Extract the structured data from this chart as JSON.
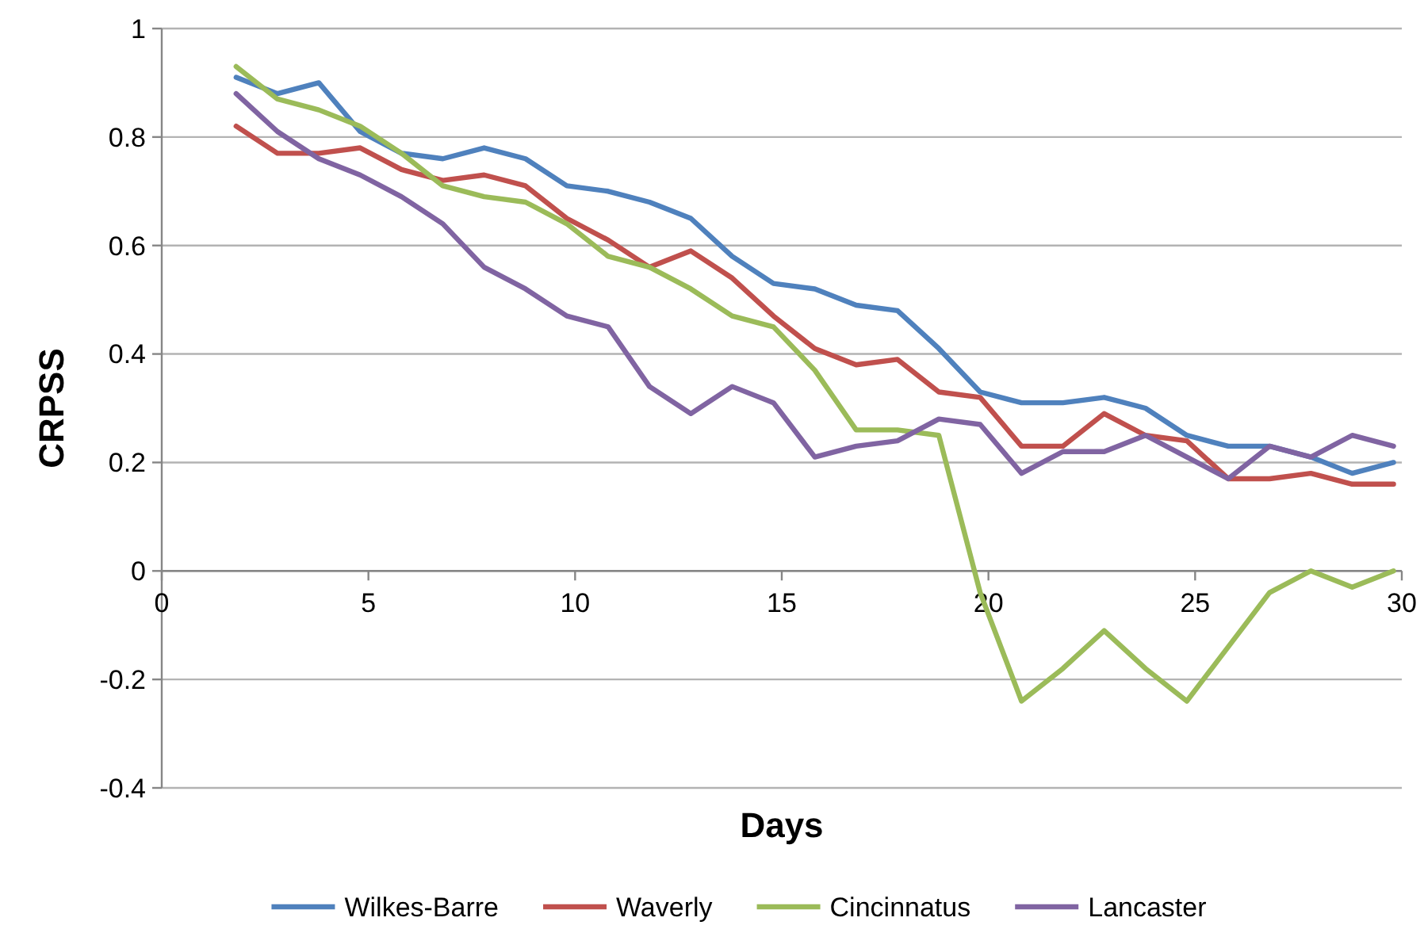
{
  "chart_data": {
    "type": "line",
    "xlabel": "Days",
    "ylabel": "CRPSS",
    "x": [
      1.8,
      2.8,
      3.8,
      4.8,
      5.8,
      6.8,
      7.8,
      8.8,
      9.8,
      10.8,
      11.8,
      12.8,
      13.8,
      14.8,
      15.8,
      16.8,
      17.8,
      18.8,
      19.8,
      20.8,
      21.8,
      22.8,
      23.8,
      24.8,
      25.8,
      26.8,
      27.8,
      28.8,
      29.8
    ],
    "series": [
      {
        "name": "Wilkes-Barre",
        "color": "#4f81bd",
        "values": [
          0.91,
          0.88,
          0.9,
          0.81,
          0.77,
          0.76,
          0.78,
          0.76,
          0.71,
          0.7,
          0.68,
          0.65,
          0.58,
          0.53,
          0.52,
          0.49,
          0.48,
          0.41,
          0.33,
          0.31,
          0.31,
          0.32,
          0.3,
          0.25,
          0.23,
          0.23,
          0.21,
          0.18,
          0.2
        ]
      },
      {
        "name": "Waverly",
        "color": "#c0504d",
        "values": [
          0.82,
          0.77,
          0.77,
          0.78,
          0.74,
          0.72,
          0.73,
          0.71,
          0.65,
          0.61,
          0.56,
          0.59,
          0.54,
          0.47,
          0.41,
          0.38,
          0.39,
          0.33,
          0.32,
          0.23,
          0.23,
          0.29,
          0.25,
          0.24,
          0.17,
          0.17,
          0.18,
          0.16,
          0.16
        ]
      },
      {
        "name": "Cincinnatus",
        "color": "#9bbb59",
        "values": [
          0.93,
          0.87,
          0.85,
          0.82,
          0.77,
          0.71,
          0.69,
          0.68,
          0.64,
          0.58,
          0.56,
          0.52,
          0.47,
          0.45,
          0.37,
          0.26,
          0.26,
          0.25,
          -0.04,
          -0.24,
          -0.18,
          -0.11,
          -0.18,
          -0.24,
          -0.14,
          -0.04,
          0.0,
          -0.03,
          0.0
        ]
      },
      {
        "name": "Lancaster",
        "color": "#8064a2",
        "values": [
          0.88,
          0.81,
          0.76,
          0.73,
          0.69,
          0.64,
          0.56,
          0.52,
          0.47,
          0.45,
          0.34,
          0.29,
          0.34,
          0.31,
          0.21,
          0.23,
          0.24,
          0.28,
          0.27,
          0.18,
          0.22,
          0.22,
          0.25,
          0.21,
          0.17,
          0.23,
          0.21,
          0.25,
          0.23
        ]
      }
    ],
    "xlim": [
      0,
      30
    ],
    "xticks": [
      0,
      5,
      10,
      15,
      20,
      25,
      30
    ],
    "ylim": [
      -0.4,
      1
    ],
    "yticks": [
      -0.4,
      -0.2,
      0,
      0.2,
      0.4,
      0.6,
      0.8,
      1
    ],
    "grid": "y",
    "legend": "bottom"
  }
}
